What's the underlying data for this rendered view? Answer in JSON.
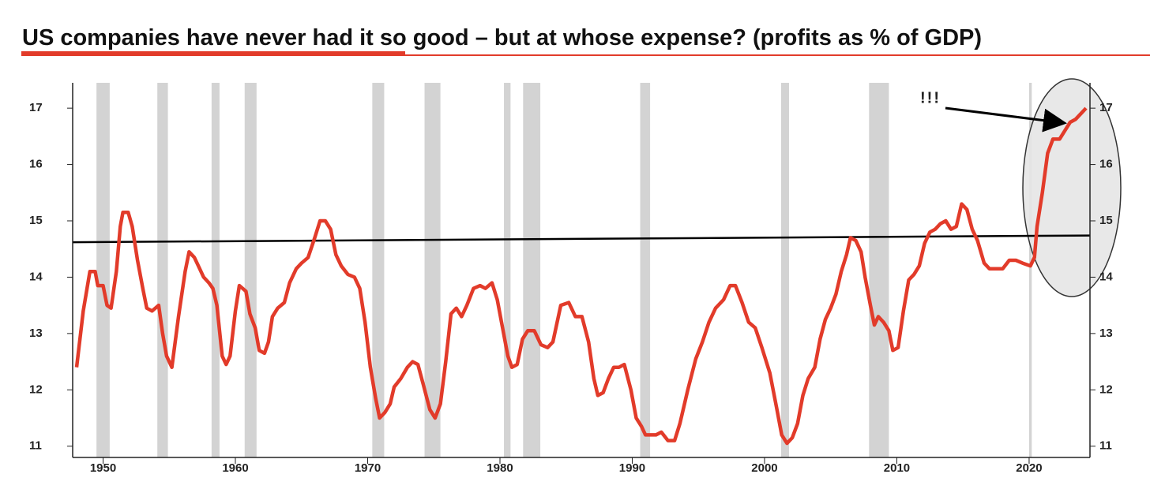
{
  "chart_data": {
    "type": "line",
    "title": "US companies have never had it so good – but at whose expense? (profits as % of GDP)",
    "annotation": "!!!",
    "xlim": [
      1947.7,
      2024.6
    ],
    "xticks": [
      1950,
      1960,
      1970,
      1980,
      1990,
      2000,
      2010,
      2020
    ],
    "ylim": [
      10.8,
      17.45
    ],
    "yticks": [
      11,
      12,
      13,
      14,
      15,
      16,
      17
    ],
    "y2lim": [
      10.8,
      17.45
    ],
    "y2ticks": [
      11,
      12,
      13,
      14,
      15,
      16,
      17
    ],
    "recessions": [
      [
        1949.5,
        1950.5
      ],
      [
        1954.1,
        1954.9
      ],
      [
        1958.2,
        1958.8
      ],
      [
        1960.7,
        1961.6
      ],
      [
        1970.35,
        1971.25
      ],
      [
        1974.3,
        1975.5
      ],
      [
        1980.3,
        1980.8
      ],
      [
        1981.75,
        1983.05
      ],
      [
        1990.6,
        1991.35
      ],
      [
        2001.25,
        2001.85
      ],
      [
        2007.9,
        2009.4
      ],
      [
        2020.0,
        2020.2
      ]
    ],
    "recession_color": "#d3d3d3",
    "trend": {
      "color": "#000000",
      "x": [
        1947.7,
        2024.6
      ],
      "values": [
        14.62,
        14.74
      ]
    },
    "series": [
      {
        "color": "#e23b2a",
        "x": [
          1948.0,
          1948.5,
          1949.0,
          1949.4,
          1949.6,
          1950.0,
          1950.3,
          1950.6,
          1951.0,
          1951.3,
          1951.5,
          1951.9,
          1952.2,
          1952.6,
          1953.0,
          1953.3,
          1953.7,
          1954.2,
          1954.5,
          1954.8,
          1955.2,
          1955.7,
          1956.2,
          1956.5,
          1956.9,
          1957.3,
          1957.6,
          1958.0,
          1958.3,
          1958.6,
          1959.0,
          1959.3,
          1959.6,
          1960.0,
          1960.3,
          1960.8,
          1961.1,
          1961.5,
          1961.8,
          1962.2,
          1962.5,
          1962.8,
          1963.2,
          1963.7,
          1964.1,
          1964.6,
          1965.0,
          1965.5,
          1966.0,
          1966.4,
          1966.8,
          1967.2,
          1967.6,
          1968.0,
          1968.5,
          1969.0,
          1969.4,
          1969.8,
          1970.2,
          1970.6,
          1970.9,
          1971.3,
          1971.7,
          1972.0,
          1972.5,
          1973.0,
          1973.4,
          1973.8,
          1974.2,
          1974.7,
          1975.1,
          1975.5,
          1975.9,
          1976.3,
          1976.7,
          1977.1,
          1977.5,
          1978.0,
          1978.5,
          1978.9,
          1979.4,
          1979.8,
          1980.2,
          1980.6,
          1980.9,
          1981.3,
          1981.7,
          1982.1,
          1982.6,
          1983.1,
          1983.6,
          1984.0,
          1984.6,
          1985.2,
          1985.7,
          1986.2,
          1986.7,
          1987.1,
          1987.4,
          1987.8,
          1988.2,
          1988.6,
          1989.0,
          1989.4,
          1989.9,
          1990.3,
          1990.7,
          1991.0,
          1991.4,
          1991.8,
          1992.2,
          1992.7,
          1993.2,
          1993.6,
          1994.2,
          1994.8,
          1995.3,
          1995.8,
          1996.3,
          1996.9,
          1997.4,
          1997.8,
          1998.3,
          1998.8,
          1999.3,
          1999.8,
          2000.4,
          2000.9,
          2001.3,
          2001.7,
          2002.1,
          2002.5,
          2002.9,
          2003.3,
          2003.8,
          2004.2,
          2004.6,
          2005.0,
          2005.4,
          2005.8,
          2006.2,
          2006.5,
          2006.9,
          2007.3,
          2007.6,
          2008.0,
          2008.3,
          2008.6,
          2009.0,
          2009.4,
          2009.7,
          2010.1,
          2010.5,
          2010.9,
          2011.3,
          2011.7,
          2012.1,
          2012.5,
          2012.9,
          2013.3,
          2013.7,
          2014.1,
          2014.5,
          2014.9,
          2015.3,
          2015.7,
          2016.1,
          2016.6,
          2017.0,
          2017.5,
          2018.0,
          2018.5,
          2019.0,
          2019.5,
          2020.1,
          2020.4,
          2020.6,
          2021.0,
          2021.4,
          2021.8,
          2022.3,
          2022.7,
          2023.1,
          2023.5,
          2023.9,
          2024.3
        ],
        "values": [
          12.4,
          13.4,
          14.1,
          14.1,
          13.85,
          13.85,
          13.5,
          13.45,
          14.1,
          14.9,
          15.15,
          15.15,
          14.9,
          14.3,
          13.8,
          13.45,
          13.4,
          13.5,
          13.0,
          12.6,
          12.4,
          13.3,
          14.1,
          14.45,
          14.35,
          14.15,
          14.0,
          13.9,
          13.8,
          13.5,
          12.6,
          12.45,
          12.6,
          13.4,
          13.85,
          13.75,
          13.35,
          13.1,
          12.7,
          12.65,
          12.85,
          13.3,
          13.45,
          13.55,
          13.9,
          14.15,
          14.25,
          14.35,
          14.7,
          15.0,
          15.0,
          14.85,
          14.4,
          14.2,
          14.05,
          14.0,
          13.8,
          13.2,
          12.4,
          11.85,
          11.5,
          11.6,
          11.75,
          12.05,
          12.2,
          12.4,
          12.5,
          12.45,
          12.1,
          11.65,
          11.5,
          11.75,
          12.5,
          13.35,
          13.45,
          13.3,
          13.5,
          13.8,
          13.85,
          13.8,
          13.9,
          13.6,
          13.1,
          12.6,
          12.4,
          12.45,
          12.9,
          13.05,
          13.05,
          12.8,
          12.75,
          12.85,
          13.5,
          13.55,
          13.3,
          13.3,
          12.85,
          12.2,
          11.9,
          11.95,
          12.2,
          12.4,
          12.4,
          12.45,
          12.0,
          11.5,
          11.35,
          11.2,
          11.2,
          11.2,
          11.25,
          11.1,
          11.1,
          11.4,
          12.0,
          12.55,
          12.85,
          13.2,
          13.45,
          13.6,
          13.85,
          13.85,
          13.55,
          13.2,
          13.1,
          12.75,
          12.3,
          11.7,
          11.2,
          11.05,
          11.15,
          11.4,
          11.9,
          12.2,
          12.4,
          12.9,
          13.25,
          13.45,
          13.7,
          14.1,
          14.4,
          14.7,
          14.65,
          14.45,
          14.0,
          13.5,
          13.15,
          13.3,
          13.2,
          13.05,
          12.7,
          12.75,
          13.4,
          13.95,
          14.05,
          14.2,
          14.6,
          14.8,
          14.85,
          14.95,
          15.0,
          14.85,
          14.9,
          15.3,
          15.2,
          14.85,
          14.65,
          14.25,
          14.15,
          14.15,
          14.15,
          14.3,
          14.3,
          14.25,
          14.2,
          14.35,
          14.9,
          15.5,
          16.2,
          16.45,
          16.45,
          16.6,
          16.75,
          16.8,
          16.9,
          17.0
        ]
      }
    ]
  }
}
